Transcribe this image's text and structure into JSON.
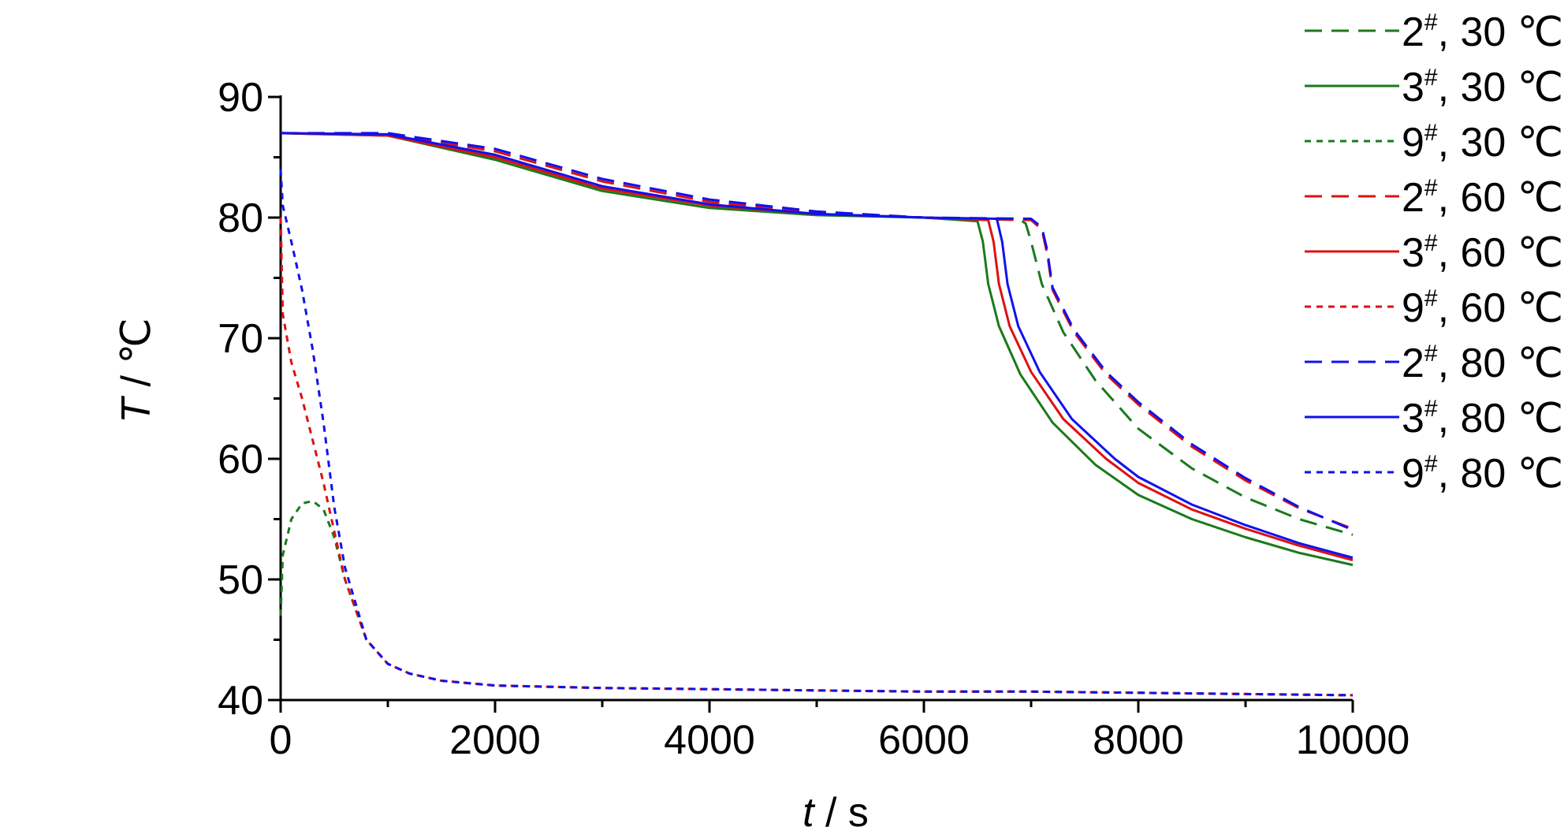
{
  "chart_data": {
    "type": "line",
    "xlabel": {
      "var": "t",
      "unit": " / s"
    },
    "ylabel": {
      "var": "T",
      "unit": " / ℃"
    },
    "xlim": [
      0,
      10000
    ],
    "ylim": [
      40,
      90
    ],
    "xticks": [
      0,
      2000,
      4000,
      6000,
      8000,
      10000
    ],
    "xtick_labels": [
      "0",
      "2000",
      "4000",
      "6000",
      "8000",
      "10000"
    ],
    "yticks": [
      40,
      50,
      60,
      70,
      80,
      90
    ],
    "ytick_labels": [
      "40",
      "50",
      "60",
      "70",
      "80",
      "90"
    ],
    "grid": false,
    "legend_position": "top-right",
    "series": [
      {
        "name": "2#, 30 ℃",
        "label_num": "2",
        "label_sup": "#",
        "label_rest": ", 30 ℃",
        "color": "#1a7a1a",
        "dash": "dashed",
        "x": [
          0,
          1000,
          2000,
          3000,
          4000,
          5000,
          6000,
          6900,
          6950,
          7000,
          7100,
          7300,
          7600,
          8000,
          8500,
          9000,
          9500,
          10000
        ],
        "y": [
          87,
          86.9,
          85.2,
          82.5,
          81,
          80.3,
          80,
          79.8,
          79.5,
          78,
          74.5,
          70.5,
          66.5,
          62.5,
          59.2,
          56.8,
          55,
          53.7
        ]
      },
      {
        "name": "3#, 30 ℃",
        "label_num": "3",
        "label_sup": "#",
        "label_rest": ", 30 ℃",
        "color": "#1a7a1a",
        "dash": "solid",
        "x": [
          0,
          1000,
          2000,
          3000,
          4000,
          5000,
          6000,
          6500,
          6550,
          6600,
          6700,
          6900,
          7200,
          7600,
          8000,
          8500,
          9000,
          9500,
          10000
        ],
        "y": [
          87,
          86.8,
          84.8,
          82.2,
          80.8,
          80.2,
          80,
          79.7,
          78,
          74.5,
          71,
          67,
          63,
          59.5,
          57,
          55,
          53.5,
          52.2,
          51.2
        ]
      },
      {
        "name": "9#, 30 ℃",
        "label_num": "9",
        "label_sup": "#",
        "label_rest": ", 30 ℃",
        "color": "#1a7a1a",
        "dash": "dotted",
        "x": [
          0,
          20,
          100,
          200,
          300,
          400,
          500,
          600,
          800,
          1000,
          1200,
          1500,
          2000,
          3000,
          4000,
          5000,
          6000,
          7000,
          8000,
          9000,
          10000
        ],
        "y": [
          47,
          52,
          55,
          56.3,
          56.5,
          55.8,
          53.5,
          50,
          45,
          43,
          42.2,
          41.6,
          41.2,
          41,
          40.9,
          40.8,
          40.7,
          40.7,
          40.6,
          40.5,
          40.4
        ]
      },
      {
        "name": "2#, 60 ℃",
        "label_num": "2",
        "label_sup": "#",
        "label_rest": ", 60 ℃",
        "color": "#dd1111",
        "dash": "dashed",
        "x": [
          0,
          1000,
          2000,
          3000,
          4000,
          5000,
          6000,
          7000,
          7100,
          7150,
          7200,
          7400,
          7700,
          8000,
          8500,
          9000,
          9500,
          10000
        ],
        "y": [
          87,
          86.9,
          85.5,
          83,
          81.3,
          80.4,
          80,
          79.8,
          79,
          77,
          74,
          70.5,
          67,
          64.5,
          61,
          58.2,
          55.9,
          54.2
        ]
      },
      {
        "name": "3#, 60 ℃",
        "label_num": "3",
        "label_sup": "#",
        "label_rest": ", 60 ℃",
        "color": "#dd1111",
        "dash": "solid",
        "x": [
          0,
          1000,
          2000,
          3000,
          4000,
          5000,
          6000,
          6600,
          6650,
          6700,
          6800,
          7000,
          7300,
          7700,
          8000,
          8500,
          9000,
          9500,
          10000
        ],
        "y": [
          87,
          86.8,
          85,
          82.4,
          81,
          80.3,
          80,
          79.8,
          78,
          74.5,
          71,
          67.2,
          63.3,
          60,
          58,
          55.8,
          54.2,
          52.8,
          51.6
        ]
      },
      {
        "name": "9#, 60 ℃",
        "label_num": "9",
        "label_sup": "#",
        "label_rest": ", 60 ℃",
        "color": "#dd1111",
        "dash": "dotted",
        "x": [
          0,
          20,
          100,
          200,
          300,
          400,
          500,
          600,
          800,
          1000,
          1200,
          1500,
          2000,
          3000,
          4000,
          5000,
          6000,
          7000,
          8000,
          9000,
          10000
        ],
        "y": [
          80,
          72,
          68,
          65,
          61.5,
          58,
          54,
          50,
          45,
          43,
          42.2,
          41.6,
          41.2,
          41,
          40.9,
          40.8,
          40.7,
          40.7,
          40.6,
          40.5,
          40.4
        ]
      },
      {
        "name": "2#, 80 ℃",
        "label_num": "2",
        "label_sup": "#",
        "label_rest": ", 80 ℃",
        "color": "#1111ee",
        "dash": "dashed",
        "x": [
          0,
          1000,
          2000,
          3000,
          4000,
          5000,
          6000,
          7000,
          7100,
          7150,
          7200,
          7400,
          7700,
          8000,
          8500,
          9000,
          9500,
          10000
        ],
        "y": [
          87,
          87,
          85.7,
          83.2,
          81.5,
          80.5,
          80,
          79.9,
          79.2,
          77.3,
          74.2,
          70.7,
          67.2,
          64.7,
          61.2,
          58.4,
          56,
          54.1
        ]
      },
      {
        "name": "3#, 80 ℃",
        "label_num": "3",
        "label_sup": "#",
        "label_rest": ", 80 ℃",
        "color": "#1111ee",
        "dash": "solid",
        "x": [
          0,
          1000,
          2000,
          3000,
          4000,
          5000,
          6000,
          6680,
          6730,
          6780,
          6880,
          7080,
          7380,
          7780,
          8000,
          8500,
          9000,
          9500,
          10000
        ],
        "y": [
          87,
          86.9,
          85.2,
          82.6,
          81.1,
          80.3,
          80,
          79.9,
          78,
          74.5,
          71,
          67.2,
          63.3,
          60,
          58.5,
          56.2,
          54.5,
          53,
          51.8
        ]
      },
      {
        "name": "9#, 80 ℃",
        "label_num": "9",
        "label_sup": "#",
        "label_rest": ", 80 ℃",
        "color": "#1111ee",
        "dash": "dotted",
        "x": [
          0,
          20,
          100,
          200,
          300,
          400,
          500,
          600,
          800,
          1000,
          1200,
          1500,
          2000,
          3000,
          4000,
          5000,
          6000,
          7000,
          8000,
          9000,
          10000
        ],
        "y": [
          84,
          81,
          78,
          74,
          69,
          63,
          56,
          51,
          45,
          43,
          42.2,
          41.6,
          41.2,
          41,
          40.9,
          40.8,
          40.7,
          40.7,
          40.6,
          40.5,
          40.4
        ]
      }
    ]
  }
}
